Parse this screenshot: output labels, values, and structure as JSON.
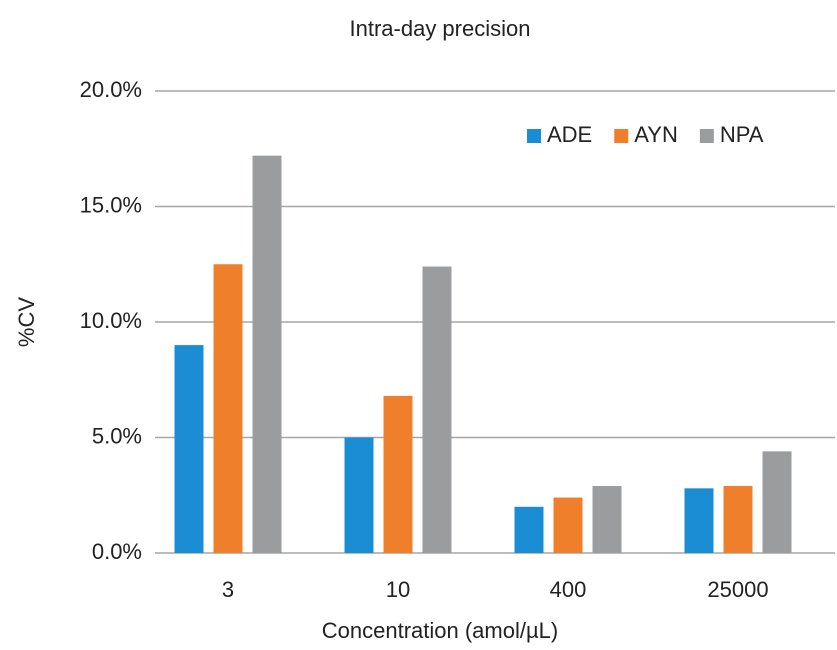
{
  "chart_data": {
    "type": "bar",
    "title": "Intra-day precision",
    "x_label": "Concentration (amol/µL)",
    "y_label": "%CV",
    "categories": [
      "3",
      "10",
      "400",
      "25000"
    ],
    "series": [
      {
        "name": "ADE",
        "color": "#1a8dd4",
        "values": [
          9.0,
          5.0,
          2.0,
          2.8
        ]
      },
      {
        "name": "AYN",
        "color": "#f07f2c",
        "values": [
          12.5,
          6.8,
          2.4,
          2.9
        ]
      },
      {
        "name": "NPA",
        "color": "#9b9c9e",
        "values": [
          17.2,
          12.4,
          2.9,
          4.4
        ]
      }
    ],
    "ylim": [
      0,
      20
    ],
    "yticks": [
      {
        "value": 0,
        "label": "0.0%"
      },
      {
        "value": 5,
        "label": "5.0%"
      },
      {
        "value": 10,
        "label": "10.0%"
      },
      {
        "value": 15,
        "label": "15.0%"
      },
      {
        "value": 20,
        "label": "20.0%"
      }
    ],
    "grid": true,
    "legend": "top-right"
  }
}
